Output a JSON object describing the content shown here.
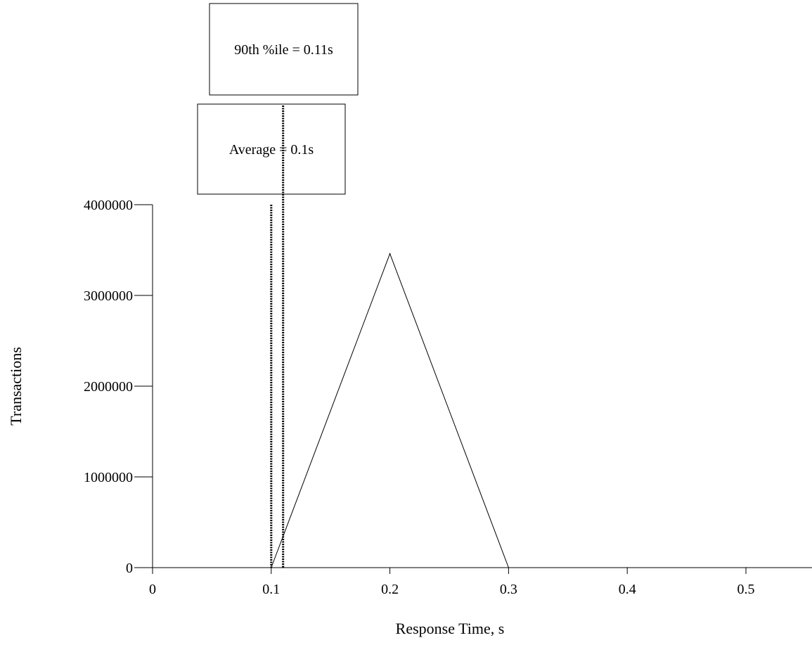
{
  "chart_data": {
    "type": "line",
    "title": "",
    "xlabel": "Response Time, s",
    "ylabel": "Transactions",
    "xlim": [
      0,
      0.55
    ],
    "ylim": [
      0,
      4000000
    ],
    "x_ticks": [
      "0",
      "0.1",
      "0.2",
      "0.3",
      "0.4",
      "0.5"
    ],
    "y_ticks": [
      "0",
      "1000000",
      "2000000",
      "3000000",
      "4000000"
    ],
    "grid": false,
    "legend": "none",
    "series": [
      {
        "x": [
          0.1,
          0.2,
          0.3,
          0.4,
          0.5
        ],
        "y": [
          0,
          3460000,
          0,
          0,
          0
        ]
      }
    ],
    "markers": [
      {
        "id": "average",
        "x": 0.1,
        "label": "Average = 0.1s",
        "style": "dotted"
      },
      {
        "id": "p90",
        "x": 0.11,
        "label": "90th %ile = 0.11s",
        "style": "dotted"
      }
    ]
  }
}
